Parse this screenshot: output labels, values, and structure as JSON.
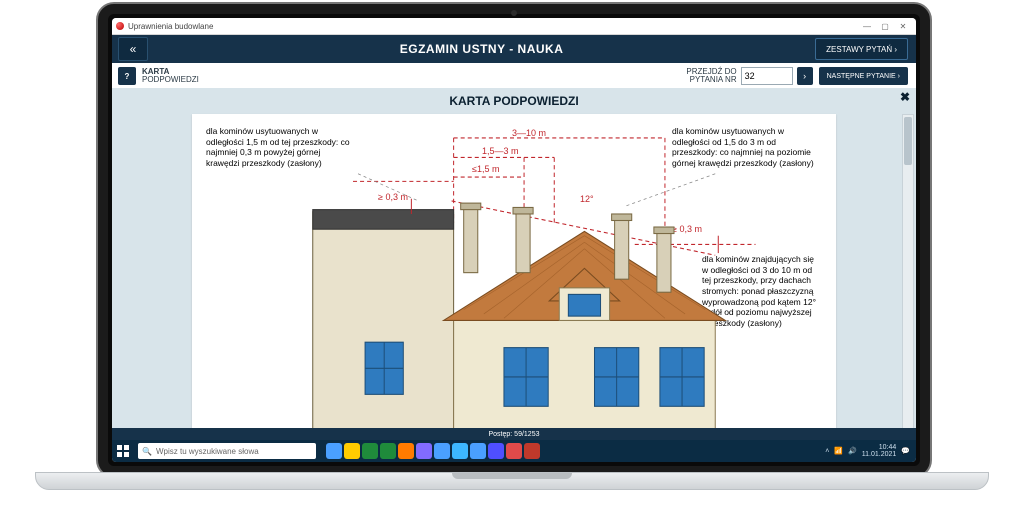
{
  "window": {
    "title": "Uprawnienia budowlane",
    "min": "—",
    "max": "▢",
    "close": "✕"
  },
  "header": {
    "back_glyph": "«",
    "title": "EGZAMIN USTNY - NAUKA",
    "sets_label": "ZESTAWY PYTAŃ  ›"
  },
  "subheader": {
    "help_glyph": "?",
    "karta_line1": "KARTA",
    "karta_line2": "PODPOWIEDZI",
    "goto_line1": "PRZEJDŹ DO",
    "goto_line2": "PYTANIA NR",
    "goto_value": "32",
    "goto_arrow": "›",
    "next_label": "NASTĘPNE PYTANIE  ›"
  },
  "card": {
    "title": "KARTA PODPOWIEDZI",
    "close": "✖"
  },
  "texts": {
    "left": "dla kominów usytuowanych w odległości 1,5 m od tej przeszkody: co najmniej 0,3 m powyżej górnej krawędzi przeszkody (zasłony)",
    "right": "dla kominów usytuowanych w odległości od 1,5 do 3 m od przeszkody: co najmniej na poziomie górnej krawędzi przeszkody (zasłony)",
    "right2": "dla kominów znajdujących się w odległości od 3 do 10 m od tej przeszkody, przy dachach stromych: ponad płaszczyzną wyprowadzoną pod kątem 12° w dół od poziomu najwyższej przeszkody (zasłony)"
  },
  "dims": {
    "d1": "3—10 m",
    "d2": "1,5—3 m",
    "d3": "≤1,5 m",
    "h1": "≥ 0,3 m",
    "angle": "12°",
    "h2": "≥ 0,3 m"
  },
  "colors": {
    "navy": "#16324a",
    "roof": "#c27a3e",
    "wall": "#e9e2cc",
    "window": "#2f7bbf",
    "dim": "#c1272d"
  },
  "progress": {
    "label": "Postęp: 59/1253"
  },
  "taskbar": {
    "search_placeholder": "Wpisz tu wyszukiwane słowa",
    "time": "10:44",
    "date": "11.01.2021",
    "icon_colors": [
      "#4aa0ff",
      "#ffcc00",
      "#1f8b3b",
      "#1f8b3b",
      "#ff7b00",
      "#816bff",
      "#4aa0ff",
      "#3db8ff",
      "#4aa0ff",
      "#4f4fff",
      "#e04a4a",
      "#c0392b"
    ]
  }
}
